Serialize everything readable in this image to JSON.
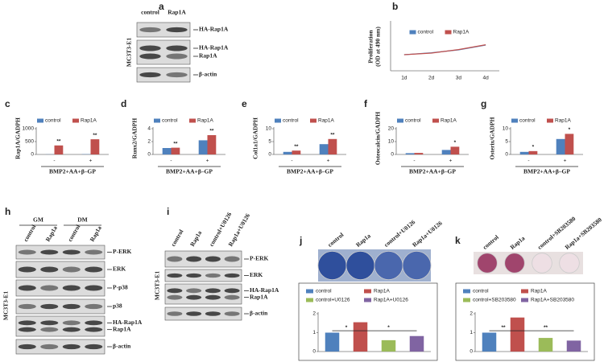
{
  "blots": [
    {
      "letter": "a",
      "columns": [
        "control",
        "Rap1A"
      ],
      "cell_line": "MC3T3-E1",
      "bands": [
        [
          "HA-Rap1A"
        ],
        [
          "HA-Rap1A",
          "Rap1A"
        ],
        [
          "β-actin"
        ]
      ]
    },
    {
      "letter": "h",
      "groups": [
        "GM",
        "DM"
      ],
      "columns": [
        "control",
        "Rap1a",
        "control",
        "Rap1a"
      ],
      "cell_line": "MC3T3-E1",
      "bands": [
        [
          "P-ERK"
        ],
        [
          "ERK"
        ],
        [
          "P-p38"
        ],
        [
          "p38"
        ],
        [
          "HA-Rap1A",
          "Rap1A"
        ],
        [
          "β-actin"
        ]
      ]
    },
    {
      "letter": "i",
      "columns": [
        "control",
        "Rap1a",
        "control+U0126",
        "Rap1a+U0126"
      ],
      "cell_line": "MC3T3-E1",
      "bands": [
        [
          "P-ERK"
        ],
        [
          "ERK"
        ],
        [
          "HA-Rap1A",
          "Rap1A"
        ],
        [
          "β-actin"
        ]
      ]
    }
  ],
  "chart_data": [
    {
      "letter": "b",
      "type": "line",
      "ylabel": [
        "Proliferation",
        "(OD at 490 nm)"
      ],
      "categories": [
        "1d",
        "2d",
        "3d",
        "4d"
      ],
      "series": [
        {
          "name": "control",
          "color": "#4f81bd",
          "values": [
            1.0,
            1.12,
            1.3,
            1.6
          ]
        },
        {
          "name": "Rap1A",
          "color": "#c0504d",
          "values": [
            1.0,
            1.1,
            1.32,
            1.62
          ]
        }
      ],
      "ylim": [
        0,
        3
      ]
    },
    {
      "letter": "c",
      "type": "bar",
      "ylabel": "Rap1A/GADPH",
      "xlabel": "BMP2+AA+β–GP",
      "categories": [
        "-",
        "+"
      ],
      "series": [
        {
          "name": "control",
          "color": "#4f81bd",
          "values": [
            5,
            10
          ]
        },
        {
          "name": "Rap1A",
          "color": "#c0504d",
          "values": [
            350,
            590
          ]
        }
      ],
      "ylim": [
        0,
        1000
      ],
      "yticks": [
        0,
        500,
        1000
      ],
      "annotations": [
        "**",
        "**"
      ]
    },
    {
      "letter": "d",
      "type": "bar",
      "ylabel": "Runx2/GADPH",
      "xlabel": "BMP2+AA+β–GP",
      "categories": [
        "-",
        "+"
      ],
      "series": [
        {
          "name": "control",
          "color": "#4f81bd",
          "values": [
            1.0,
            2.2
          ]
        },
        {
          "name": "Rap1A",
          "color": "#c0504d",
          "values": [
            1.05,
            3.0
          ]
        }
      ],
      "ylim": [
        0,
        4
      ],
      "yticks": [
        0,
        2,
        4
      ],
      "annotations": [
        "**",
        "**"
      ]
    },
    {
      "letter": "e",
      "type": "bar",
      "ylabel": "Col1a1/GADPH",
      "xlabel": "BMP2+AA+β–GP",
      "categories": [
        "-",
        "+"
      ],
      "series": [
        {
          "name": "control",
          "color": "#4f81bd",
          "values": [
            1.0,
            4.0
          ]
        },
        {
          "name": "Rap1A",
          "color": "#c0504d",
          "values": [
            1.5,
            6.0
          ]
        }
      ],
      "ylim": [
        0,
        10
      ],
      "yticks": [
        0,
        5,
        10
      ],
      "annotations": [
        "**",
        "**"
      ]
    },
    {
      "letter": "f",
      "type": "bar",
      "ylabel": "Osteocalcin/GADPH",
      "xlabel": "BMP2+AA+β–GP",
      "categories": [
        "-",
        "+"
      ],
      "series": [
        {
          "name": "control",
          "color": "#4f81bd",
          "values": [
            1.0,
            3.5
          ]
        },
        {
          "name": "Rap1A",
          "color": "#c0504d",
          "values": [
            1.2,
            6.0
          ]
        }
      ],
      "ylim": [
        0,
        20
      ],
      "yticks": [
        0,
        10,
        20
      ],
      "annotations": [
        null,
        "*"
      ]
    },
    {
      "letter": "g",
      "type": "bar",
      "ylabel": "Osterix/GADPH",
      "xlabel": "BMP2+AA+β–GP",
      "categories": [
        "-",
        "+"
      ],
      "series": [
        {
          "name": "control",
          "color": "#4f81bd",
          "values": [
            1.0,
            6.0
          ]
        },
        {
          "name": "Rap1A",
          "color": "#c0504d",
          "values": [
            1.3,
            8.0
          ]
        }
      ],
      "ylim": [
        0,
        10
      ],
      "yticks": [
        0,
        5,
        10
      ],
      "annotations": [
        "*",
        "*"
      ]
    },
    {
      "letter": "j",
      "type": "bar",
      "image_columns": [
        "control",
        "Rap1a",
        "control+U0126",
        "Rap1a+U0126"
      ],
      "categories": [
        "control",
        "Rap1A",
        "control+U0126",
        "Rap1A+U0126"
      ],
      "colors": [
        "#4f81bd",
        "#c0504d",
        "#9bbb59",
        "#8064a2"
      ],
      "values": [
        1.0,
        1.55,
        0.6,
        0.82
      ],
      "ylim": [
        0,
        2
      ],
      "yticks": [
        0,
        1,
        2
      ],
      "annotations": [
        "*",
        "*"
      ]
    },
    {
      "letter": "k",
      "type": "bar",
      "image_columns": [
        "control",
        "Rap1a",
        "control+SB203580",
        "Rap1a+SB203580"
      ],
      "categories": [
        "control",
        "Rap1A",
        "control+SB203580",
        "Rap1A+SB203580"
      ],
      "colors": [
        "#4f81bd",
        "#c0504d",
        "#9bbb59",
        "#8064a2"
      ],
      "values": [
        1.0,
        1.8,
        0.72,
        0.58
      ],
      "ylim": [
        0,
        2
      ],
      "yticks": [
        0,
        1,
        2
      ],
      "annotations": [
        "**",
        "**"
      ]
    }
  ]
}
